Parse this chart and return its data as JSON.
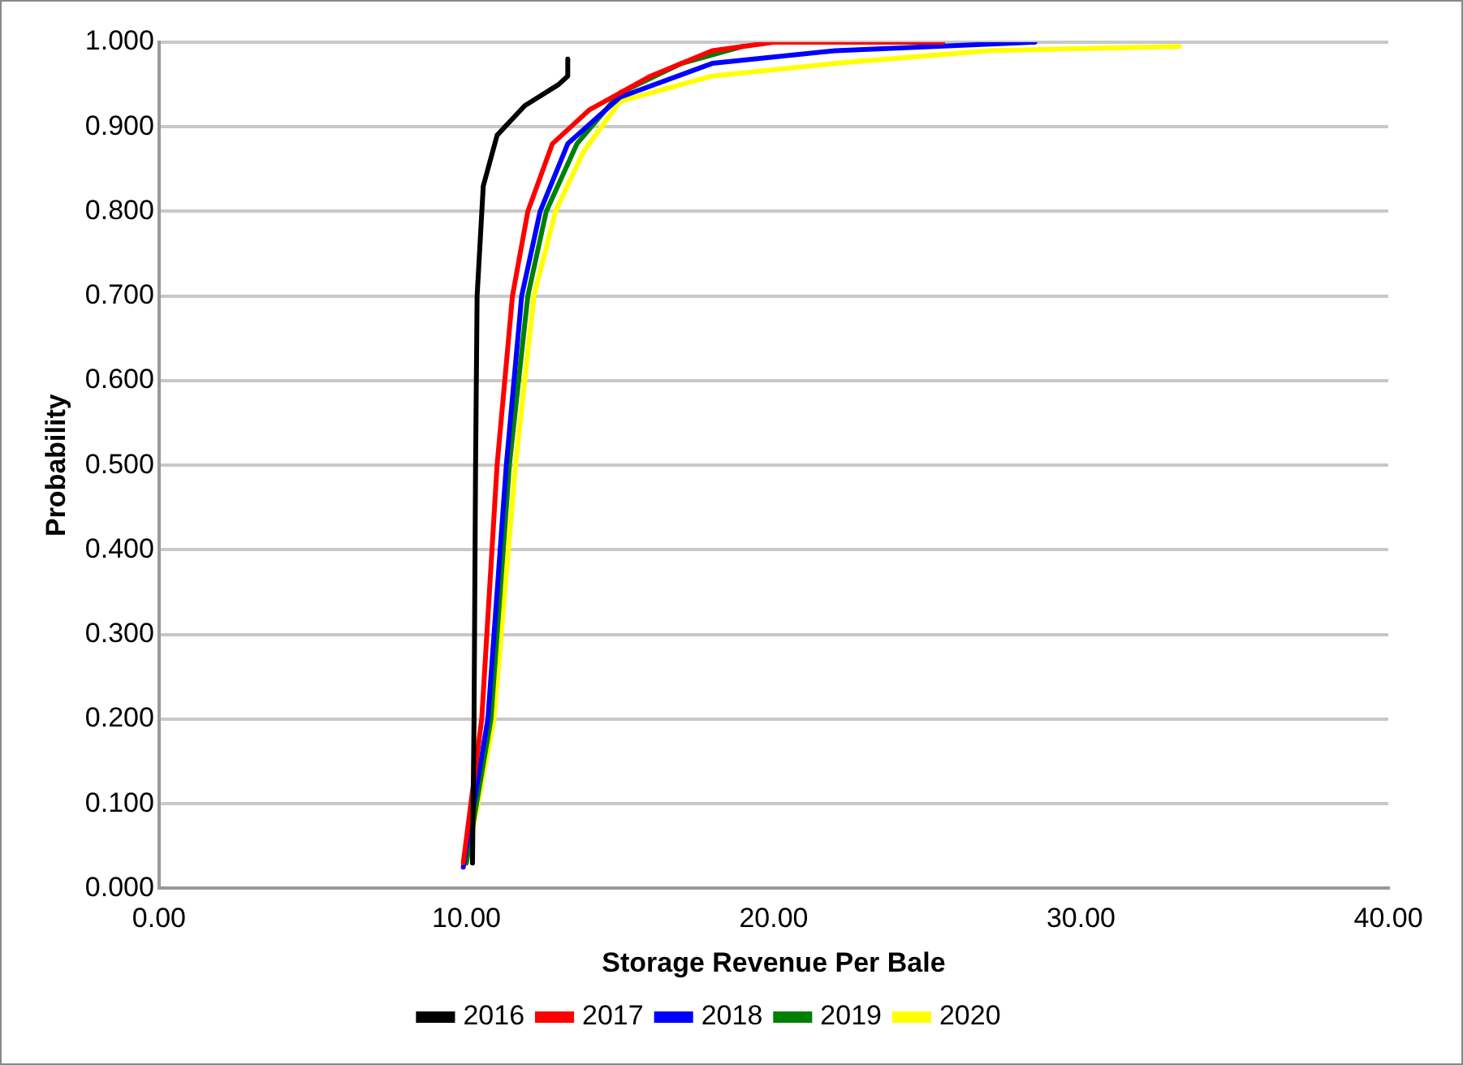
{
  "chart_data": {
    "type": "line",
    "xlabel": "Storage Revenue Per Bale",
    "ylabel": "Probability",
    "xlim": [
      0,
      40
    ],
    "ylim": [
      0,
      1
    ],
    "xticks": [
      {
        "value": 0,
        "label": "0.00"
      },
      {
        "value": 10,
        "label": "10.00"
      },
      {
        "value": 20,
        "label": "20.00"
      },
      {
        "value": 30,
        "label": "30.00"
      },
      {
        "value": 40,
        "label": "40.00"
      }
    ],
    "yticks": [
      {
        "value": 0,
        "label": "0.000"
      },
      {
        "value": 0.1,
        "label": "0.100"
      },
      {
        "value": 0.2,
        "label": "0.200"
      },
      {
        "value": 0.3,
        "label": "0.300"
      },
      {
        "value": 0.4,
        "label": "0.400"
      },
      {
        "value": 0.5,
        "label": "0.500"
      },
      {
        "value": 0.6,
        "label": "0.600"
      },
      {
        "value": 0.7,
        "label": "0.700"
      },
      {
        "value": 0.8,
        "label": "0.800"
      },
      {
        "value": 0.9,
        "label": "0.900"
      },
      {
        "value": 1,
        "label": "1.000"
      }
    ],
    "grid": "y",
    "legend": "bottom",
    "marker": "none",
    "line_style": "solid",
    "series": [
      {
        "name": "2016",
        "color": "#000000",
        "x": [
          10.2,
          10.25,
          10.3,
          10.35,
          10.55,
          11.0,
          11.9,
          13.0,
          13.3,
          13.3
        ],
        "values": [
          0.03,
          0.2,
          0.5,
          0.7,
          0.83,
          0.89,
          0.925,
          0.95,
          0.96,
          0.98
        ]
      },
      {
        "name": "2017",
        "color": "#ff0000",
        "x": [
          9.9,
          10.5,
          11.0,
          11.5,
          12.0,
          12.8,
          14.0,
          16.0,
          18.0,
          20.0,
          25.5
        ],
        "values": [
          0.03,
          0.2,
          0.5,
          0.7,
          0.8,
          0.88,
          0.92,
          0.96,
          0.99,
          1.0,
          1.0
        ]
      },
      {
        "name": "2018",
        "color": "#0000ff",
        "x": [
          9.9,
          10.7,
          11.3,
          11.8,
          12.4,
          13.3,
          15.0,
          18.0,
          22.0,
          28.5
        ],
        "values": [
          0.025,
          0.2,
          0.5,
          0.7,
          0.8,
          0.88,
          0.935,
          0.975,
          0.99,
          1.0
        ]
      },
      {
        "name": "2019",
        "color": "#008000",
        "x": [
          10.0,
          10.8,
          11.4,
          12.0,
          12.6,
          13.6,
          15.0,
          17.0,
          19.0
        ],
        "values": [
          0.03,
          0.2,
          0.5,
          0.7,
          0.8,
          0.88,
          0.94,
          0.975,
          0.995
        ]
      },
      {
        "name": "2020",
        "color": "#ffff00",
        "x": [
          10.0,
          10.9,
          11.6,
          12.2,
          12.9,
          13.8,
          15.0,
          18.0,
          22.0,
          27.0,
          33.2
        ],
        "values": [
          0.03,
          0.2,
          0.5,
          0.7,
          0.8,
          0.87,
          0.93,
          0.96,
          0.975,
          0.99,
          0.995
        ]
      }
    ]
  }
}
